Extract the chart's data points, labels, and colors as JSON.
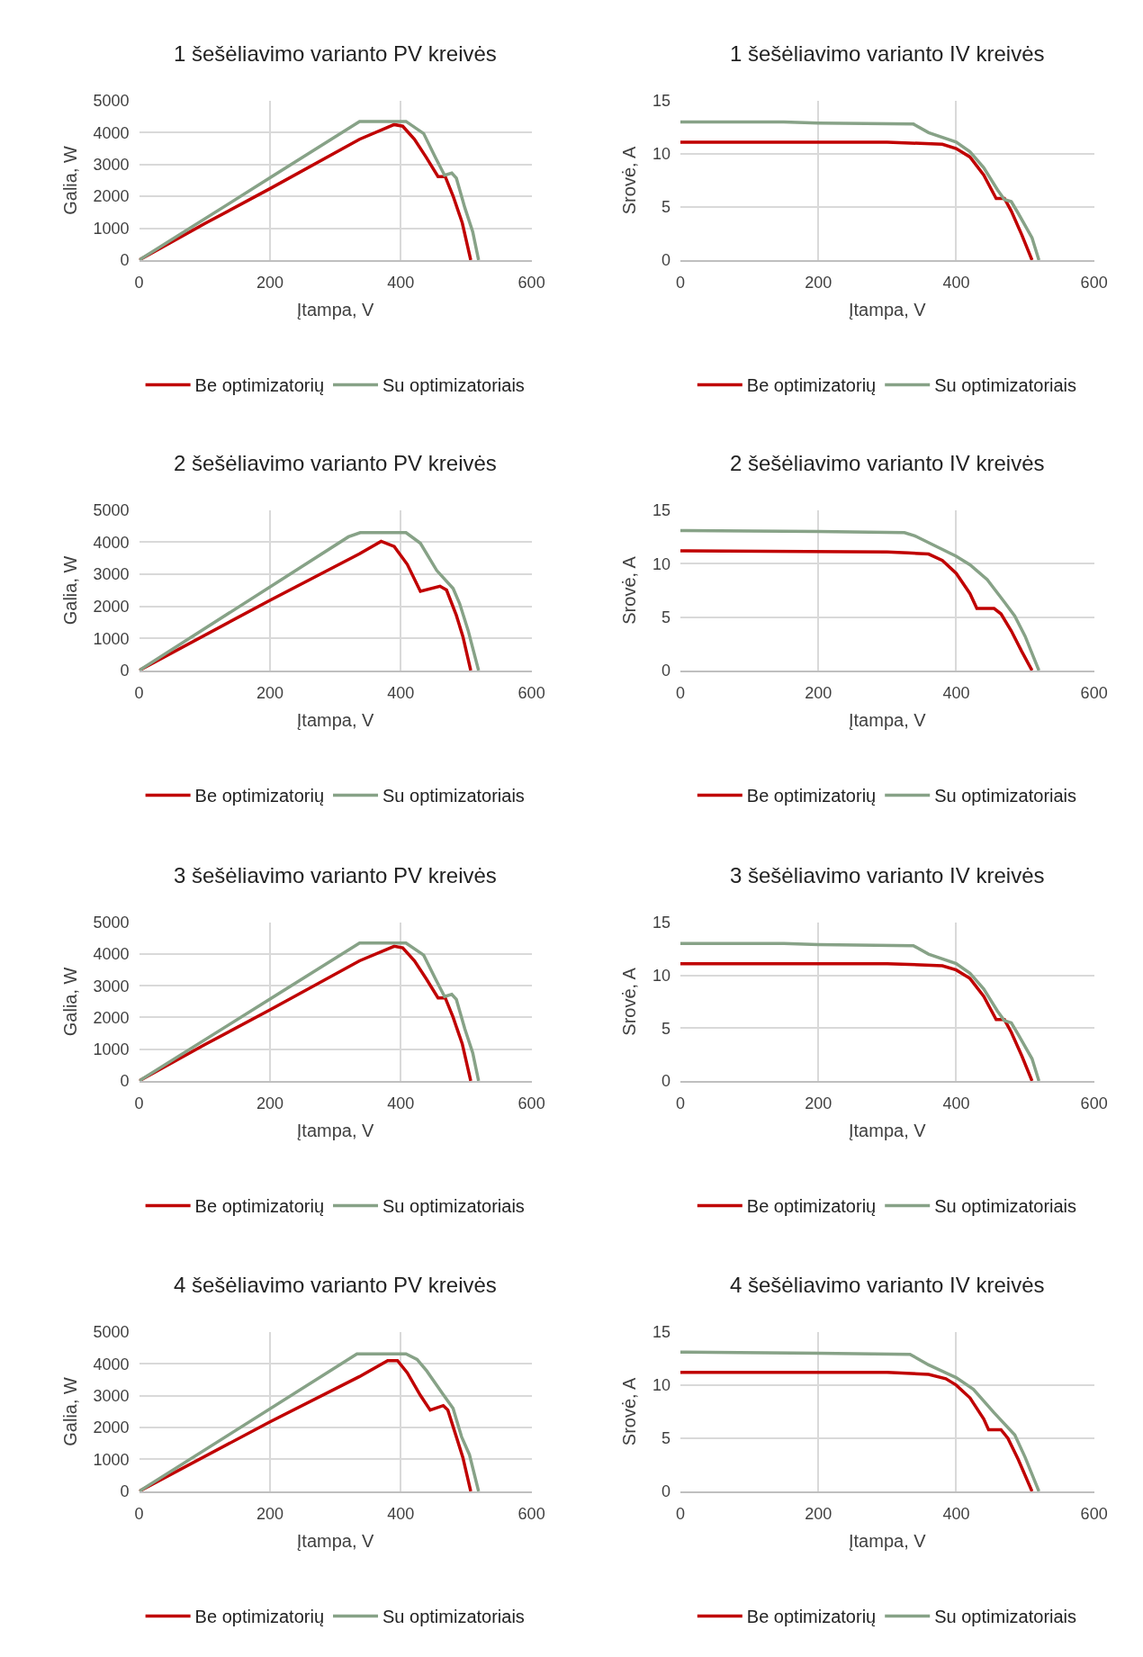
{
  "chart_data": [
    {
      "type": "line",
      "title": "1 šešėliavimo varianto PV kreivės",
      "xlabel": "Įtampa, V",
      "ylabel": "Galia, W",
      "xlim": [
        0,
        600
      ],
      "xticks": [
        0,
        200,
        400,
        600
      ],
      "ylim": [
        0,
        5000
      ],
      "yticks": [
        0,
        1000,
        2000,
        3000,
        4000,
        5000
      ],
      "grid": true,
      "legend": "bottom",
      "series": [
        {
          "name": "Be optimizatorių",
          "color": "#c00000",
          "x": [
            0,
            100,
            200,
            337,
            390,
            403,
            421,
            439,
            457,
            468,
            480,
            494,
            507
          ],
          "values": [
            0,
            1140,
            2240,
            3790,
            4250,
            4200,
            3790,
            3220,
            2620,
            2620,
            2010,
            1170,
            0
          ]
        },
        {
          "name": "Su optimizatoriais",
          "color": "#87a287",
          "x": [
            0,
            200,
            337,
            408,
            435,
            453,
            467,
            478,
            485,
            498,
            510,
            519
          ],
          "values": [
            0,
            2580,
            4350,
            4350,
            3970,
            3220,
            2660,
            2730,
            2570,
            1640,
            890,
            0
          ]
        }
      ]
    },
    {
      "type": "line",
      "title": "1 šešėliavimo varianto IV kreivės",
      "xlabel": "Įtampa, V",
      "ylabel": "Srovė, A",
      "xlim": [
        0,
        600
      ],
      "xticks": [
        0,
        200,
        400,
        600
      ],
      "ylim": [
        0,
        15
      ],
      "yticks": [
        0,
        5,
        10,
        15
      ],
      "grid": true,
      "legend": "bottom",
      "series": [
        {
          "name": "Be optimizatorių",
          "color": "#c00000",
          "x": [
            0,
            300,
            380,
            400,
            420,
            440,
            458,
            470,
            480,
            495,
            510
          ],
          "values": [
            11.1,
            11.1,
            10.9,
            10.5,
            9.7,
            8.0,
            5.8,
            5.8,
            4.6,
            2.4,
            0
          ]
        },
        {
          "name": "Su optimizatoriais",
          "color": "#87a287",
          "x": [
            0,
            150,
            200,
            338,
            360,
            400,
            420,
            440,
            460,
            470,
            480,
            490,
            510,
            520
          ],
          "values": [
            13.0,
            13.0,
            12.9,
            12.8,
            12.0,
            11.1,
            10.2,
            8.7,
            6.6,
            5.7,
            5.5,
            4.4,
            2.1,
            0
          ]
        }
      ]
    },
    {
      "type": "line",
      "title": "2 šešėliavimo varianto PV kreivės",
      "xlabel": "Įtampa, V",
      "ylabel": "Galia, W",
      "xlim": [
        0,
        600
      ],
      "xticks": [
        0,
        200,
        400,
        600
      ],
      "ylim": [
        0,
        5000
      ],
      "yticks": [
        0,
        1000,
        2000,
        3000,
        4000,
        5000
      ],
      "grid": true,
      "legend": "bottom",
      "series": [
        {
          "name": "Be optimizatorių",
          "color": "#c00000",
          "x": [
            0,
            200,
            337,
            370,
            390,
            410,
            430,
            460,
            470,
            485,
            495,
            507
          ],
          "values": [
            0,
            2190,
            3640,
            4030,
            3870,
            3310,
            2470,
            2630,
            2510,
            1720,
            1060,
            0
          ]
        },
        {
          "name": "Su optimizatoriais",
          "color": "#87a287",
          "x": [
            0,
            320,
            338,
            408,
            430,
            455,
            480,
            490,
            503,
            519
          ],
          "values": [
            0,
            4170,
            4300,
            4300,
            3970,
            3120,
            2560,
            2090,
            1250,
            0
          ]
        }
      ]
    },
    {
      "type": "line",
      "title": "2 šešėliavimo varianto IV kreivės",
      "xlabel": "Įtampa, V",
      "ylabel": "Srovė, A",
      "xlim": [
        0,
        600
      ],
      "xticks": [
        0,
        200,
        400,
        600
      ],
      "ylim": [
        0,
        15
      ],
      "yticks": [
        0,
        5,
        10,
        15
      ],
      "grid": true,
      "legend": "bottom",
      "series": [
        {
          "name": "Be optimizatorių",
          "color": "#c00000",
          "x": [
            0,
            300,
            330,
            360,
            380,
            400,
            420,
            430,
            455,
            465,
            480,
            495,
            510
          ],
          "values": [
            11.2,
            11.1,
            11.0,
            10.9,
            10.3,
            9.1,
            7.2,
            5.8,
            5.8,
            5.3,
            3.7,
            1.8,
            0
          ]
        },
        {
          "name": "Su optimizatoriais",
          "color": "#87a287",
          "x": [
            0,
            200,
            325,
            340,
            400,
            420,
            445,
            470,
            485,
            500,
            520
          ],
          "values": [
            13.1,
            13.0,
            12.9,
            12.6,
            10.7,
            9.9,
            8.5,
            6.4,
            5.1,
            3.2,
            0
          ]
        }
      ]
    },
    {
      "type": "line",
      "title": "3 šešėliavimo varianto PV kreivės",
      "xlabel": "Įtampa, V",
      "ylabel": "Galia, W",
      "xlim": [
        0,
        600
      ],
      "xticks": [
        0,
        200,
        400,
        600
      ],
      "ylim": [
        0,
        5000
      ],
      "yticks": [
        0,
        1000,
        2000,
        3000,
        4000,
        5000
      ],
      "grid": true,
      "legend": "bottom",
      "series": [
        {
          "name": "Be optimizatorių",
          "color": "#c00000",
          "x": [
            0,
            100,
            200,
            337,
            390,
            403,
            421,
            439,
            457,
            468,
            480,
            494,
            507
          ],
          "values": [
            0,
            1140,
            2240,
            3790,
            4250,
            4200,
            3790,
            3220,
            2620,
            2620,
            2010,
            1170,
            0
          ]
        },
        {
          "name": "Su optimizatoriais",
          "color": "#87a287",
          "x": [
            0,
            200,
            337,
            408,
            435,
            453,
            467,
            478,
            485,
            498,
            510,
            519
          ],
          "values": [
            0,
            2580,
            4350,
            4350,
            3970,
            3220,
            2660,
            2730,
            2570,
            1640,
            890,
            0
          ]
        }
      ]
    },
    {
      "type": "line",
      "title": "3 šešėliavimo varianto IV kreivės",
      "xlabel": "Įtampa, V",
      "ylabel": "Srovė, A",
      "xlim": [
        0,
        600
      ],
      "xticks": [
        0,
        200,
        400,
        600
      ],
      "ylim": [
        0,
        15
      ],
      "yticks": [
        0,
        5,
        10,
        15
      ],
      "grid": true,
      "legend": "bottom",
      "series": [
        {
          "name": "Be optimizatorių",
          "color": "#c00000",
          "x": [
            0,
            300,
            380,
            400,
            420,
            440,
            458,
            470,
            480,
            495,
            510
          ],
          "values": [
            11.1,
            11.1,
            10.9,
            10.5,
            9.7,
            8.0,
            5.8,
            5.8,
            4.6,
            2.4,
            0
          ]
        },
        {
          "name": "Su optimizatoriais",
          "color": "#87a287",
          "x": [
            0,
            150,
            200,
            338,
            360,
            400,
            420,
            440,
            460,
            470,
            480,
            490,
            510,
            520
          ],
          "values": [
            13.0,
            13.0,
            12.9,
            12.8,
            12.0,
            11.1,
            10.2,
            8.7,
            6.6,
            5.7,
            5.5,
            4.4,
            2.1,
            0
          ]
        }
      ]
    },
    {
      "type": "line",
      "title": "4 šešėliavimo varianto PV kreivės",
      "xlabel": "Įtampa, V",
      "ylabel": "Galia, W",
      "xlim": [
        0,
        600
      ],
      "xticks": [
        0,
        200,
        400,
        600
      ],
      "ylim": [
        0,
        5000
      ],
      "yticks": [
        0,
        1000,
        2000,
        3000,
        4000,
        5000
      ],
      "grid": true,
      "legend": "bottom",
      "series": [
        {
          "name": "Be optimizatorių",
          "color": "#c00000",
          "x": [
            0,
            200,
            337,
            380,
            395,
            410,
            430,
            445,
            465,
            472,
            485,
            495,
            507
          ],
          "values": [
            0,
            2180,
            3600,
            4100,
            4100,
            3720,
            3010,
            2550,
            2690,
            2550,
            1710,
            1060,
            0
          ]
        },
        {
          "name": "Su optimizatoriais",
          "color": "#87a287",
          "x": [
            0,
            333,
            408,
            425,
            440,
            465,
            480,
            493,
            505,
            519
          ],
          "values": [
            0,
            4310,
            4310,
            4140,
            3770,
            3030,
            2600,
            1710,
            1150,
            0
          ]
        }
      ]
    },
    {
      "type": "line",
      "title": "4 šešėliavimo varianto IV kreivės",
      "xlabel": "Įtampa, V",
      "ylabel": "Srovė, A",
      "xlim": [
        0,
        600
      ],
      "xticks": [
        0,
        200,
        400,
        600
      ],
      "ylim": [
        0,
        15
      ],
      "yticks": [
        0,
        5,
        10,
        15
      ],
      "grid": true,
      "legend": "bottom",
      "series": [
        {
          "name": "Be optimizatorių",
          "color": "#c00000",
          "x": [
            0,
            300,
            360,
            385,
            400,
            420,
            440,
            447,
            465,
            475,
            490,
            510
          ],
          "values": [
            11.2,
            11.2,
            11.0,
            10.6,
            10.0,
            8.8,
            6.8,
            5.8,
            5.8,
            5.0,
            3.0,
            0
          ]
        },
        {
          "name": "Su optimizatoriais",
          "color": "#87a287",
          "x": [
            0,
            200,
            333,
            360,
            400,
            425,
            455,
            485,
            500,
            520
          ],
          "values": [
            13.1,
            13.0,
            12.9,
            11.9,
            10.7,
            9.6,
            7.4,
            5.3,
            3.2,
            0
          ]
        }
      ]
    }
  ]
}
